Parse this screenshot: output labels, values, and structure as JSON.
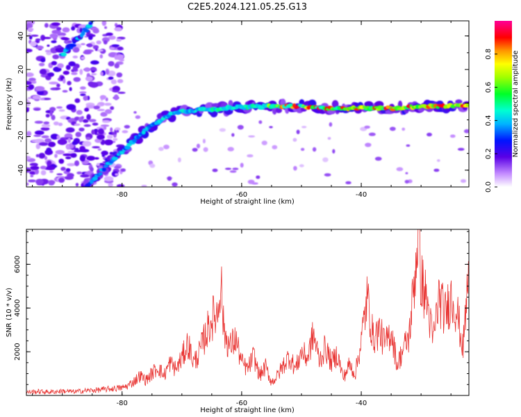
{
  "title": "C2E5.2024.121.05.25.G13",
  "chart_data": [
    {
      "type": "heatmap",
      "xlabel": "Height of straight line (km)",
      "ylabel": "Frequency (Hz)",
      "xlim": [
        -96,
        -22
      ],
      "ylim": [
        -50,
        49
      ],
      "xticks": [
        "-80",
        "-60",
        "-40"
      ],
      "yticks": [
        "-40",
        "-20",
        "0",
        "20",
        "40"
      ],
      "colorbar": {
        "label": "Normalized spectral amplitude",
        "range": [
          0,
          1
        ],
        "ticks": [
          "0.0",
          "0.2",
          "0.4",
          "0.6",
          "0.8"
        ],
        "colormap": "rainbow (white-violet-blue-cyan-green-yellow-orange-red-magenta)"
      },
      "ridge": [
        {
          "x": -86,
          "f": -50
        },
        {
          "x": -84,
          "f": -43
        },
        {
          "x": -82,
          "f": -35
        },
        {
          "x": -80,
          "f": -29
        },
        {
          "x": -78,
          "f": -22
        },
        {
          "x": -76,
          "f": -16
        },
        {
          "x": -74,
          "f": -11
        },
        {
          "x": -72,
          "f": -7
        },
        {
          "x": -70,
          "f": -5
        },
        {
          "x": -66,
          "f": -4
        },
        {
          "x": -62,
          "f": -3
        },
        {
          "x": -58,
          "f": -2
        },
        {
          "x": -54,
          "f": -2
        },
        {
          "x": -50,
          "f": -2
        },
        {
          "x": -46,
          "f": -3
        },
        {
          "x": -42,
          "f": -3
        },
        {
          "x": -38,
          "f": -3
        },
        {
          "x": -34,
          "f": -3
        },
        {
          "x": -30,
          "f": -2
        },
        {
          "x": -26,
          "f": -2
        },
        {
          "x": -22,
          "f": -1
        }
      ],
      "upper_branch": [
        {
          "x": -90,
          "f": 29
        },
        {
          "x": -88,
          "f": 36
        },
        {
          "x": -86,
          "f": 44
        },
        {
          "x": -85,
          "f": 49
        }
      ]
    },
    {
      "type": "line",
      "xlabel": "Height of straight line (km)",
      "ylabel": "SNR (10 * v/v)",
      "xlim": [
        -96,
        -22
      ],
      "ylim": [
        0,
        7600
      ],
      "xticks": [
        "-80",
        "-60",
        "-40"
      ],
      "yticks": [
        "2000",
        "4000",
        "6000"
      ],
      "color": "#e8312f",
      "series": [
        {
          "x": [
            -96,
            -94,
            -92,
            -90,
            -88,
            -86,
            -84,
            -82,
            -80,
            -79,
            -78,
            -77,
            -76,
            -75,
            -74,
            -73,
            -72,
            -71,
            -70,
            -69,
            -68,
            -67,
            -66,
            -65,
            -64,
            -63.5,
            -63,
            -62,
            -61,
            -60,
            -59,
            -58,
            -57,
            -56,
            -55,
            -54,
            -53,
            -52,
            -51,
            -50,
            -49,
            -48,
            -47,
            -46,
            -45,
            -44,
            -43,
            -42,
            -41,
            -40,
            -39,
            -38,
            -37,
            -36,
            -35,
            -34,
            -33,
            -32,
            -31,
            -30.5,
            -30,
            -29,
            -28,
            -27,
            -26,
            -25,
            -24,
            -23,
            -22
          ],
          "y": [
            150,
            180,
            160,
            200,
            170,
            220,
            250,
            300,
            350,
            450,
            650,
            900,
            700,
            1000,
            1300,
            900,
            1500,
            1200,
            1700,
            2400,
            1500,
            2000,
            2800,
            3500,
            3800,
            5500,
            3000,
            2200,
            2600,
            1500,
            1200,
            1800,
            900,
            1300,
            600,
            900,
            1400,
            1800,
            1200,
            2000,
            1700,
            2800,
            1600,
            2200,
            1500,
            1900,
            800,
            1400,
            1000,
            2500,
            4500,
            2600,
            3000,
            2300,
            3000,
            1400,
            2100,
            2700,
            5600,
            7600,
            5300,
            4300,
            2500,
            4500,
            3700,
            4500,
            3900,
            2100,
            5800
          ]
        }
      ]
    }
  ]
}
